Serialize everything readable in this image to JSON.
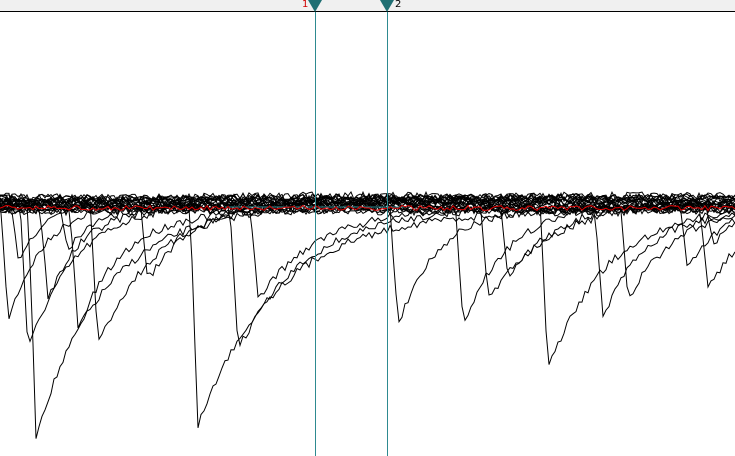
{
  "cursors": [
    {
      "label": "1",
      "label_color": "#d00000",
      "color": "#2e8a90"
    },
    {
      "label": "2",
      "label_color": "#000000",
      "color": "#2e8a90"
    }
  ],
  "colors": {
    "background": "#ffffff",
    "cursor_bar": "#f0f0f0",
    "trace": "#000000",
    "average_trace": "#e00000",
    "cursor": "#2e8a90",
    "cursor_handle": "#1f6f73"
  }
}
